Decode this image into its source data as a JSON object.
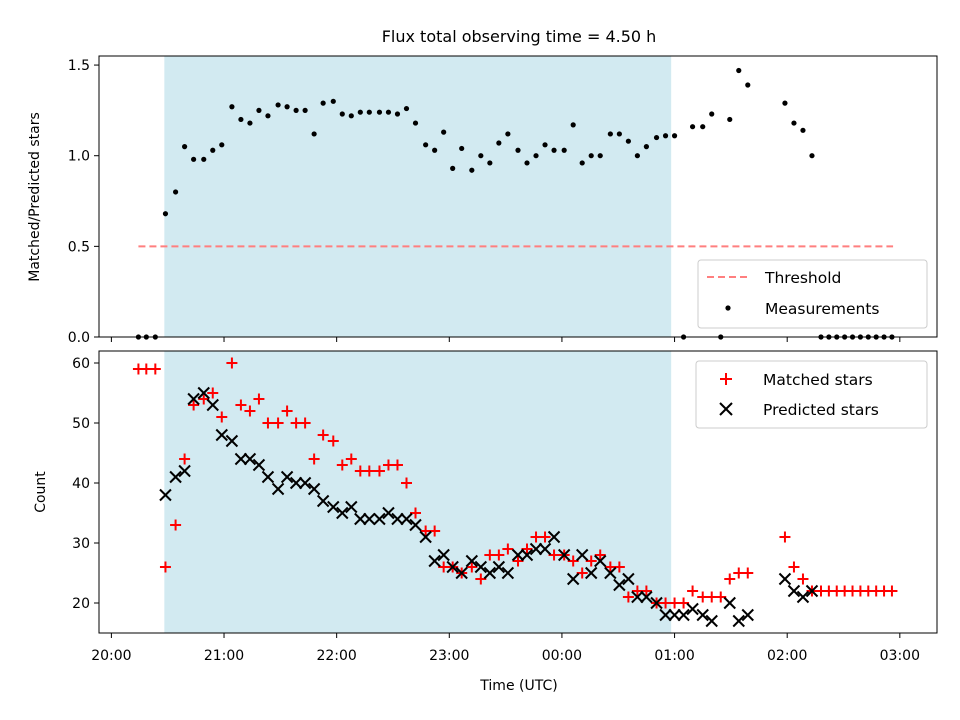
{
  "title": "Flux total observing time = 4.50 h",
  "colors": {
    "band": "#add8e6",
    "threshold": "#ff7f7f",
    "matched": "#ff0000",
    "predicted": "#000000",
    "measurement": "#000000"
  },
  "x_ticks": [
    {
      "x": 0,
      "label": "20:00"
    },
    {
      "x": 1,
      "label": "21:00"
    },
    {
      "x": 2,
      "label": "22:00"
    },
    {
      "x": 3,
      "label": "23:00"
    },
    {
      "x": 4,
      "label": "00:00"
    },
    {
      "x": 5,
      "label": "01:00"
    },
    {
      "x": 6,
      "label": "02:00"
    },
    {
      "x": 7,
      "label": "03:00"
    }
  ],
  "chart_data": [
    {
      "type": "scatter",
      "ylabel": "Matched/Predicted stars",
      "xlim": [
        -0.11,
        7.33
      ],
      "ylim": [
        0.0,
        1.55
      ],
      "y_ticks": [
        0.0,
        0.5,
        1.0,
        1.5
      ],
      "y_tick_labels": [
        "0.0",
        "0.5",
        "1.0",
        "1.5"
      ],
      "observing_band": [
        0.47,
        4.97
      ],
      "threshold": {
        "name": "Threshold",
        "value": 0.5,
        "x_range": [
          0.24,
          6.94
        ]
      },
      "legend": {
        "position": "lower right",
        "entries": [
          "Threshold",
          "Measurements"
        ]
      },
      "series": [
        {
          "name": "Measurements",
          "points": [
            [
              0.24,
              0.0
            ],
            [
              0.31,
              0.0
            ],
            [
              0.39,
              0.0
            ],
            [
              0.48,
              0.68
            ],
            [
              0.57,
              0.8
            ],
            [
              0.65,
              1.05
            ],
            [
              0.73,
              0.98
            ],
            [
              0.82,
              0.98
            ],
            [
              0.9,
              1.03
            ],
            [
              0.98,
              1.06
            ],
            [
              1.07,
              1.27
            ],
            [
              1.15,
              1.2
            ],
            [
              1.23,
              1.18
            ],
            [
              1.31,
              1.25
            ],
            [
              1.39,
              1.22
            ],
            [
              1.48,
              1.28
            ],
            [
              1.56,
              1.27
            ],
            [
              1.64,
              1.25
            ],
            [
              1.72,
              1.25
            ],
            [
              1.8,
              1.12
            ],
            [
              1.88,
              1.29
            ],
            [
              1.97,
              1.3
            ],
            [
              2.05,
              1.23
            ],
            [
              2.13,
              1.22
            ],
            [
              2.21,
              1.24
            ],
            [
              2.29,
              1.24
            ],
            [
              2.38,
              1.24
            ],
            [
              2.46,
              1.24
            ],
            [
              2.54,
              1.23
            ],
            [
              2.62,
              1.26
            ],
            [
              2.7,
              1.18
            ],
            [
              2.79,
              1.06
            ],
            [
              2.87,
              1.03
            ],
            [
              2.95,
              1.13
            ],
            [
              3.03,
              0.93
            ],
            [
              3.11,
              1.04
            ],
            [
              3.2,
              0.92
            ],
            [
              3.28,
              1.0
            ],
            [
              3.36,
              0.96
            ],
            [
              3.44,
              1.07
            ],
            [
              3.52,
              1.12
            ],
            [
              3.61,
              1.03
            ],
            [
              3.69,
              0.96
            ],
            [
              3.77,
              1.0
            ],
            [
              3.85,
              1.06
            ],
            [
              3.93,
              1.03
            ],
            [
              4.02,
              1.03
            ],
            [
              4.1,
              1.17
            ],
            [
              4.18,
              0.96
            ],
            [
              4.26,
              1.0
            ],
            [
              4.34,
              1.0
            ],
            [
              4.43,
              1.12
            ],
            [
              4.51,
              1.12
            ],
            [
              4.59,
              1.08
            ],
            [
              4.67,
              1.0
            ],
            [
              4.75,
              1.05
            ],
            [
              4.84,
              1.1
            ],
            [
              4.92,
              1.11
            ],
            [
              5.0,
              1.11
            ],
            [
              5.08,
              0.0
            ],
            [
              5.16,
              1.16
            ],
            [
              5.25,
              1.16
            ],
            [
              5.33,
              1.23
            ],
            [
              5.41,
              0.0
            ],
            [
              5.49,
              1.2
            ],
            [
              5.57,
              1.47
            ],
            [
              5.65,
              1.39
            ],
            [
              5.98,
              1.29
            ],
            [
              6.06,
              1.18
            ],
            [
              6.14,
              1.14
            ],
            [
              6.22,
              1.0
            ],
            [
              6.3,
              0.0
            ],
            [
              6.37,
              0.0
            ],
            [
              6.44,
              0.0
            ],
            [
              6.51,
              0.0
            ],
            [
              6.58,
              0.0
            ],
            [
              6.65,
              0.0
            ],
            [
              6.72,
              0.0
            ],
            [
              6.79,
              0.0
            ],
            [
              6.86,
              0.0
            ],
            [
              6.93,
              0.0
            ]
          ]
        }
      ]
    },
    {
      "type": "scatter",
      "xlabel": "Time (UTC)",
      "ylabel": "Count",
      "xlim": [
        -0.11,
        7.33
      ],
      "ylim": [
        15,
        62
      ],
      "y_ticks": [
        20,
        30,
        40,
        50,
        60
      ],
      "y_tick_labels": [
        "20",
        "30",
        "40",
        "50",
        "60"
      ],
      "observing_band": [
        0.47,
        4.97
      ],
      "legend": {
        "position": "upper right",
        "entries": [
          "Matched stars",
          "Predicted stars"
        ]
      },
      "series": [
        {
          "name": "Matched stars",
          "marker": "+",
          "points": [
            [
              0.24,
              59
            ],
            [
              0.31,
              59
            ],
            [
              0.39,
              59
            ],
            [
              0.48,
              26
            ],
            [
              0.57,
              33
            ],
            [
              0.65,
              44
            ],
            [
              0.73,
              53
            ],
            [
              0.82,
              54
            ],
            [
              0.9,
              55
            ],
            [
              0.98,
              51
            ],
            [
              1.07,
              60
            ],
            [
              1.15,
              53
            ],
            [
              1.23,
              52
            ],
            [
              1.31,
              54
            ],
            [
              1.39,
              50
            ],
            [
              1.48,
              50
            ],
            [
              1.56,
              52
            ],
            [
              1.64,
              50
            ],
            [
              1.72,
              50
            ],
            [
              1.8,
              44
            ],
            [
              1.88,
              48
            ],
            [
              1.97,
              47
            ],
            [
              2.05,
              43
            ],
            [
              2.13,
              44
            ],
            [
              2.21,
              42
            ],
            [
              2.29,
              42
            ],
            [
              2.38,
              42
            ],
            [
              2.46,
              43
            ],
            [
              2.54,
              43
            ],
            [
              2.62,
              40
            ],
            [
              2.7,
              35
            ],
            [
              2.79,
              32
            ],
            [
              2.87,
              32
            ],
            [
              2.95,
              26
            ],
            [
              3.03,
              26
            ],
            [
              3.11,
              25
            ],
            [
              3.2,
              26
            ],
            [
              3.28,
              24
            ],
            [
              3.36,
              28
            ],
            [
              3.44,
              28
            ],
            [
              3.52,
              29
            ],
            [
              3.61,
              27
            ],
            [
              3.69,
              29
            ],
            [
              3.77,
              31
            ],
            [
              3.85,
              31
            ],
            [
              3.93,
              28
            ],
            [
              4.02,
              28
            ],
            [
              4.1,
              27
            ],
            [
              4.18,
              25
            ],
            [
              4.26,
              27
            ],
            [
              4.34,
              28
            ],
            [
              4.43,
              26
            ],
            [
              4.51,
              26
            ],
            [
              4.59,
              21
            ],
            [
              4.67,
              22
            ],
            [
              4.75,
              22
            ],
            [
              4.84,
              20
            ],
            [
              4.92,
              20
            ],
            [
              5.0,
              20
            ],
            [
              5.08,
              20
            ],
            [
              5.16,
              22
            ],
            [
              5.25,
              21
            ],
            [
              5.33,
              21
            ],
            [
              5.41,
              21
            ],
            [
              5.49,
              24
            ],
            [
              5.57,
              25
            ],
            [
              5.65,
              25
            ],
            [
              5.98,
              31
            ],
            [
              6.06,
              26
            ],
            [
              6.14,
              24
            ],
            [
              6.22,
              22
            ],
            [
              6.3,
              22
            ],
            [
              6.37,
              22
            ],
            [
              6.44,
              22
            ],
            [
              6.51,
              22
            ],
            [
              6.58,
              22
            ],
            [
              6.65,
              22
            ],
            [
              6.72,
              22
            ],
            [
              6.79,
              22
            ],
            [
              6.86,
              22
            ],
            [
              6.93,
              22
            ]
          ]
        },
        {
          "name": "Predicted stars",
          "marker": "x",
          "points": [
            [
              0.48,
              38
            ],
            [
              0.57,
              41
            ],
            [
              0.65,
              42
            ],
            [
              0.73,
              54
            ],
            [
              0.82,
              55
            ],
            [
              0.9,
              53
            ],
            [
              0.98,
              48
            ],
            [
              1.07,
              47
            ],
            [
              1.15,
              44
            ],
            [
              1.23,
              44
            ],
            [
              1.31,
              43
            ],
            [
              1.39,
              41
            ],
            [
              1.48,
              39
            ],
            [
              1.56,
              41
            ],
            [
              1.64,
              40
            ],
            [
              1.72,
              40
            ],
            [
              1.8,
              39
            ],
            [
              1.88,
              37
            ],
            [
              1.97,
              36
            ],
            [
              2.05,
              35
            ],
            [
              2.13,
              36
            ],
            [
              2.21,
              34
            ],
            [
              2.29,
              34
            ],
            [
              2.38,
              34
            ],
            [
              2.46,
              35
            ],
            [
              2.54,
              34
            ],
            [
              2.62,
              34
            ],
            [
              2.7,
              33
            ],
            [
              2.79,
              31
            ],
            [
              2.87,
              27
            ],
            [
              2.95,
              28
            ],
            [
              3.03,
              26
            ],
            [
              3.11,
              25
            ],
            [
              3.2,
              27
            ],
            [
              3.28,
              26
            ],
            [
              3.36,
              25
            ],
            [
              3.44,
              26
            ],
            [
              3.52,
              25
            ],
            [
              3.61,
              28
            ],
            [
              3.69,
              28
            ],
            [
              3.77,
              29
            ],
            [
              3.85,
              29
            ],
            [
              3.93,
              31
            ],
            [
              4.02,
              28
            ],
            [
              4.1,
              24
            ],
            [
              4.18,
              28
            ],
            [
              4.26,
              25
            ],
            [
              4.34,
              27
            ],
            [
              4.43,
              25
            ],
            [
              4.51,
              23
            ],
            [
              4.59,
              24
            ],
            [
              4.67,
              21
            ],
            [
              4.75,
              21
            ],
            [
              4.84,
              20
            ],
            [
              4.92,
              18
            ],
            [
              5.0,
              18
            ],
            [
              5.08,
              18
            ],
            [
              5.16,
              19
            ],
            [
              5.25,
              18
            ],
            [
              5.33,
              17
            ],
            [
              5.49,
              20
            ],
            [
              5.57,
              17
            ],
            [
              5.65,
              18
            ],
            [
              5.98,
              24
            ],
            [
              6.06,
              22
            ],
            [
              6.14,
              21
            ],
            [
              6.22,
              22
            ]
          ]
        }
      ]
    }
  ]
}
